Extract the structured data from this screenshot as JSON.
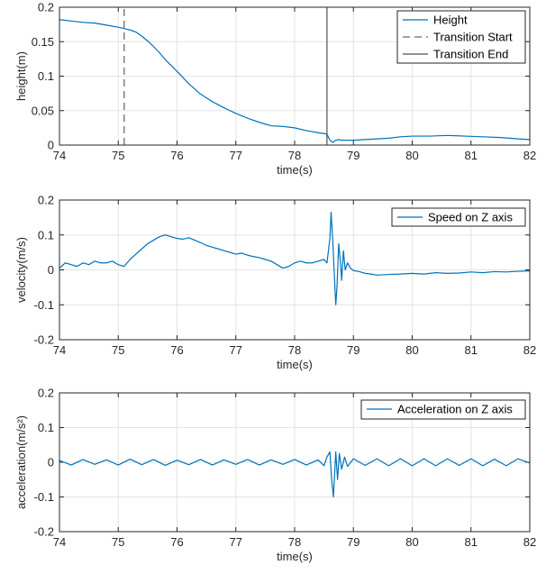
{
  "chart_data": [
    {
      "type": "line",
      "xlabel": "time(s)",
      "ylabel": "height(m)",
      "xlim": [
        74,
        82
      ],
      "ylim": [
        0,
        0.2
      ],
      "xticks": [
        "74",
        "75",
        "76",
        "77",
        "78",
        "79",
        "80",
        "81",
        "82"
      ],
      "yticks": [
        "0",
        "0.05",
        "0.1",
        "0.15",
        "0.2"
      ],
      "grid": true,
      "legend_position": "top-right",
      "series": [
        {
          "name": "Height",
          "color": "#0072BD",
          "style": "solid",
          "x": [
            74.0,
            74.2,
            74.4,
            74.6,
            74.8,
            75.0,
            75.1,
            75.2,
            75.3,
            75.4,
            75.5,
            75.6,
            75.7,
            75.8,
            76.0,
            76.2,
            76.4,
            76.6,
            76.8,
            77.0,
            77.2,
            77.4,
            77.6,
            77.8,
            78.0,
            78.2,
            78.4,
            78.55,
            78.6,
            78.65,
            78.7,
            78.75,
            78.8,
            79.0,
            79.2,
            79.4,
            79.6,
            79.8,
            80.0,
            80.3,
            80.6,
            80.9,
            81.2,
            81.5,
            81.8,
            82.0
          ],
          "y": [
            0.182,
            0.18,
            0.178,
            0.177,
            0.174,
            0.171,
            0.169,
            0.167,
            0.164,
            0.158,
            0.151,
            0.143,
            0.134,
            0.124,
            0.107,
            0.089,
            0.074,
            0.063,
            0.054,
            0.046,
            0.039,
            0.033,
            0.028,
            0.027,
            0.025,
            0.021,
            0.018,
            0.016,
            0.007,
            0.004,
            0.007,
            0.008,
            0.007,
            0.007,
            0.008,
            0.009,
            0.01,
            0.012,
            0.013,
            0.013,
            0.014,
            0.013,
            0.012,
            0.011,
            0.009,
            0.008
          ]
        },
        {
          "name": "Transition Start",
          "color": "#808080",
          "style": "dashed",
          "x": [
            75.1,
            75.1
          ],
          "y": [
            0,
            0.2
          ]
        },
        {
          "name": "Transition End",
          "color": "#505050",
          "style": "solid",
          "x": [
            78.55,
            78.55
          ],
          "y": [
            0,
            0.2
          ]
        }
      ]
    },
    {
      "type": "line",
      "xlabel": "time(s)",
      "ylabel": "velocity(m/s)",
      "xlim": [
        74,
        82
      ],
      "ylim": [
        -0.2,
        0.2
      ],
      "xticks": [
        "74",
        "75",
        "76",
        "77",
        "78",
        "79",
        "80",
        "81",
        "82"
      ],
      "yticks": [
        "-0.2",
        "-0.1",
        "0",
        "0.1",
        "0.2"
      ],
      "grid": true,
      "legend_position": "top-right",
      "series": [
        {
          "name": "Speed on Z axis",
          "color": "#0072BD",
          "style": "solid",
          "x": [
            74.0,
            74.1,
            74.2,
            74.3,
            74.4,
            74.5,
            74.6,
            74.7,
            74.8,
            74.9,
            75.0,
            75.1,
            75.2,
            75.3,
            75.4,
            75.5,
            75.6,
            75.7,
            75.8,
            75.9,
            76.0,
            76.1,
            76.2,
            76.3,
            76.4,
            76.5,
            76.6,
            76.7,
            76.8,
            76.9,
            77.0,
            77.1,
            77.2,
            77.3,
            77.4,
            77.5,
            77.6,
            77.7,
            77.8,
            77.9,
            78.0,
            78.1,
            78.2,
            78.3,
            78.4,
            78.5,
            78.55,
            78.6,
            78.62,
            78.65,
            78.68,
            78.7,
            78.72,
            78.75,
            78.78,
            78.8,
            78.83,
            78.86,
            78.9,
            78.95,
            79.0,
            79.1,
            79.2,
            79.3,
            79.4,
            79.5,
            79.6,
            79.8,
            80.0,
            80.2,
            80.4,
            80.6,
            80.8,
            81.0,
            81.2,
            81.4,
            81.6,
            81.8,
            82.0
          ],
          "y": [
            0.005,
            0.02,
            0.015,
            0.01,
            0.02,
            0.015,
            0.025,
            0.02,
            0.02,
            0.025,
            0.015,
            0.01,
            0.03,
            0.045,
            0.06,
            0.075,
            0.085,
            0.095,
            0.1,
            0.095,
            0.09,
            0.088,
            0.092,
            0.085,
            0.078,
            0.07,
            0.065,
            0.06,
            0.055,
            0.05,
            0.045,
            0.048,
            0.042,
            0.038,
            0.035,
            0.03,
            0.025,
            0.015,
            0.005,
            0.01,
            0.02,
            0.025,
            0.02,
            0.02,
            0.025,
            0.03,
            0.02,
            0.09,
            0.165,
            0.08,
            -0.03,
            -0.1,
            -0.05,
            0.075,
            0.02,
            -0.03,
            0.055,
            0.0,
            0.02,
            0.005,
            -0.002,
            -0.005,
            -0.01,
            -0.012,
            -0.015,
            -0.014,
            -0.013,
            -0.012,
            -0.01,
            -0.012,
            -0.008,
            -0.01,
            -0.009,
            -0.006,
            -0.008,
            -0.005,
            -0.006,
            -0.004,
            -0.003
          ]
        }
      ]
    },
    {
      "type": "line",
      "xlabel": "time(s)",
      "ylabel": "acceleration(m/s²)",
      "xlim": [
        74,
        82
      ],
      "ylim": [
        -0.2,
        0.2
      ],
      "xticks": [
        "74",
        "75",
        "76",
        "77",
        "78",
        "79",
        "80",
        "81",
        "82"
      ],
      "yticks": [
        "-0.2",
        "-0.1",
        "0",
        "0.1",
        "0.2"
      ],
      "grid": true,
      "legend_position": "top-right",
      "series": [
        {
          "name": "Acceleration on Z axis",
          "color": "#0072BD",
          "style": "solid",
          "x": [
            74.0,
            74.2,
            74.4,
            74.6,
            74.8,
            75.0,
            75.2,
            75.4,
            75.6,
            75.8,
            76.0,
            76.2,
            76.4,
            76.6,
            76.8,
            77.0,
            77.2,
            77.4,
            77.6,
            77.8,
            78.0,
            78.2,
            78.4,
            78.5,
            78.55,
            78.6,
            78.63,
            78.66,
            78.7,
            78.73,
            78.76,
            78.8,
            78.85,
            78.9,
            79.0,
            79.2,
            79.4,
            79.6,
            79.8,
            80.0,
            80.2,
            80.4,
            80.6,
            80.8,
            81.0,
            81.2,
            81.4,
            81.6,
            81.8,
            82.0
          ],
          "y": [
            0.005,
            -0.008,
            0.008,
            -0.006,
            0.007,
            -0.008,
            0.009,
            -0.007,
            0.008,
            -0.009,
            0.006,
            -0.007,
            0.008,
            -0.008,
            0.007,
            -0.006,
            0.008,
            -0.008,
            0.007,
            -0.006,
            0.008,
            -0.008,
            0.007,
            -0.01,
            0.015,
            0.03,
            -0.05,
            -0.1,
            0.03,
            -0.05,
            0.025,
            -0.02,
            0.015,
            -0.012,
            0.01,
            -0.009,
            0.01,
            -0.01,
            0.01,
            -0.01,
            0.01,
            -0.01,
            0.01,
            -0.009,
            0.01,
            -0.01,
            0.009,
            -0.01,
            0.01,
            -0.002
          ]
        }
      ]
    }
  ]
}
